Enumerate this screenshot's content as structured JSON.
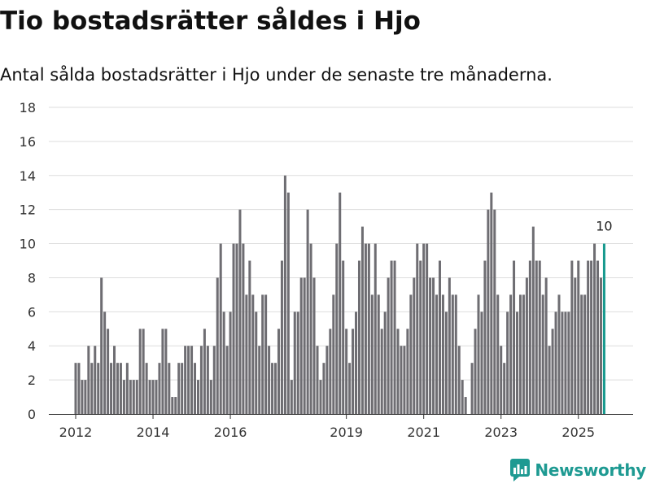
{
  "title": "Tio bostadsrätter såldes i Hjo",
  "subtitle": "Antal sålda bostadsrätter i Hjo under de senaste tre månaderna.",
  "brand": {
    "name": "Newsworthy",
    "icon": "chart-logo-icon",
    "color": "#1e9a92"
  },
  "chart_data": {
    "type": "bar",
    "title": "Tio bostadsrätter såldes i Hjo",
    "subtitle": "Antal sålda bostadsrätter i Hjo under de senaste tre månaderna.",
    "xlabel": "",
    "ylabel": "",
    "ylim": [
      0,
      18
    ],
    "yticks": [
      0,
      2,
      4,
      6,
      8,
      10,
      12,
      14,
      16,
      18
    ],
    "grid": true,
    "bar_color": "#6e6d72",
    "highlight_color": "#17998e",
    "x_start": "2012-01",
    "x_unit": "month",
    "xtick_labels": [
      {
        "label": "2012",
        "index": 0
      },
      {
        "label": "2014",
        "index": 24
      },
      {
        "label": "2016",
        "index": 48
      },
      {
        "label": "2019",
        "index": 84
      },
      {
        "label": "2021",
        "index": 108
      },
      {
        "label": "2023",
        "index": 132
      },
      {
        "label": "2025",
        "index": 156
      }
    ],
    "values": [
      3,
      3,
      2,
      2,
      4,
      3,
      4,
      3,
      8,
      6,
      5,
      3,
      4,
      3,
      3,
      2,
      3,
      2,
      2,
      2,
      5,
      5,
      3,
      2,
      2,
      2,
      3,
      5,
      5,
      3,
      1,
      1,
      3,
      3,
      4,
      4,
      4,
      3,
      2,
      4,
      5,
      4,
      2,
      4,
      8,
      10,
      6,
      4,
      6,
      10,
      10,
      12,
      10,
      7,
      9,
      7,
      6,
      4,
      7,
      7,
      4,
      3,
      3,
      5,
      9,
      14,
      13,
      2,
      6,
      6,
      8,
      8,
      12,
      10,
      8,
      4,
      2,
      3,
      4,
      5,
      7,
      10,
      13,
      9,
      5,
      3,
      5,
      6,
      9,
      11,
      10,
      10,
      7,
      10,
      7,
      5,
      6,
      8,
      9,
      9,
      5,
      4,
      4,
      5,
      7,
      8,
      10,
      9,
      10,
      10,
      8,
      8,
      7,
      9,
      7,
      6,
      8,
      7,
      7,
      4,
      2,
      1,
      0,
      3,
      5,
      7,
      6,
      9,
      12,
      13,
      12,
      7,
      4,
      3,
      6,
      7,
      9,
      6,
      7,
      7,
      8,
      9,
      11,
      9,
      9,
      7,
      8,
      4,
      5,
      6,
      7,
      6,
      6,
      6,
      9,
      8,
      9,
      7,
      7,
      9,
      9,
      10,
      9,
      8,
      10
    ],
    "highlight_index": 164,
    "annotation": {
      "index": 164,
      "text": "10"
    }
  }
}
